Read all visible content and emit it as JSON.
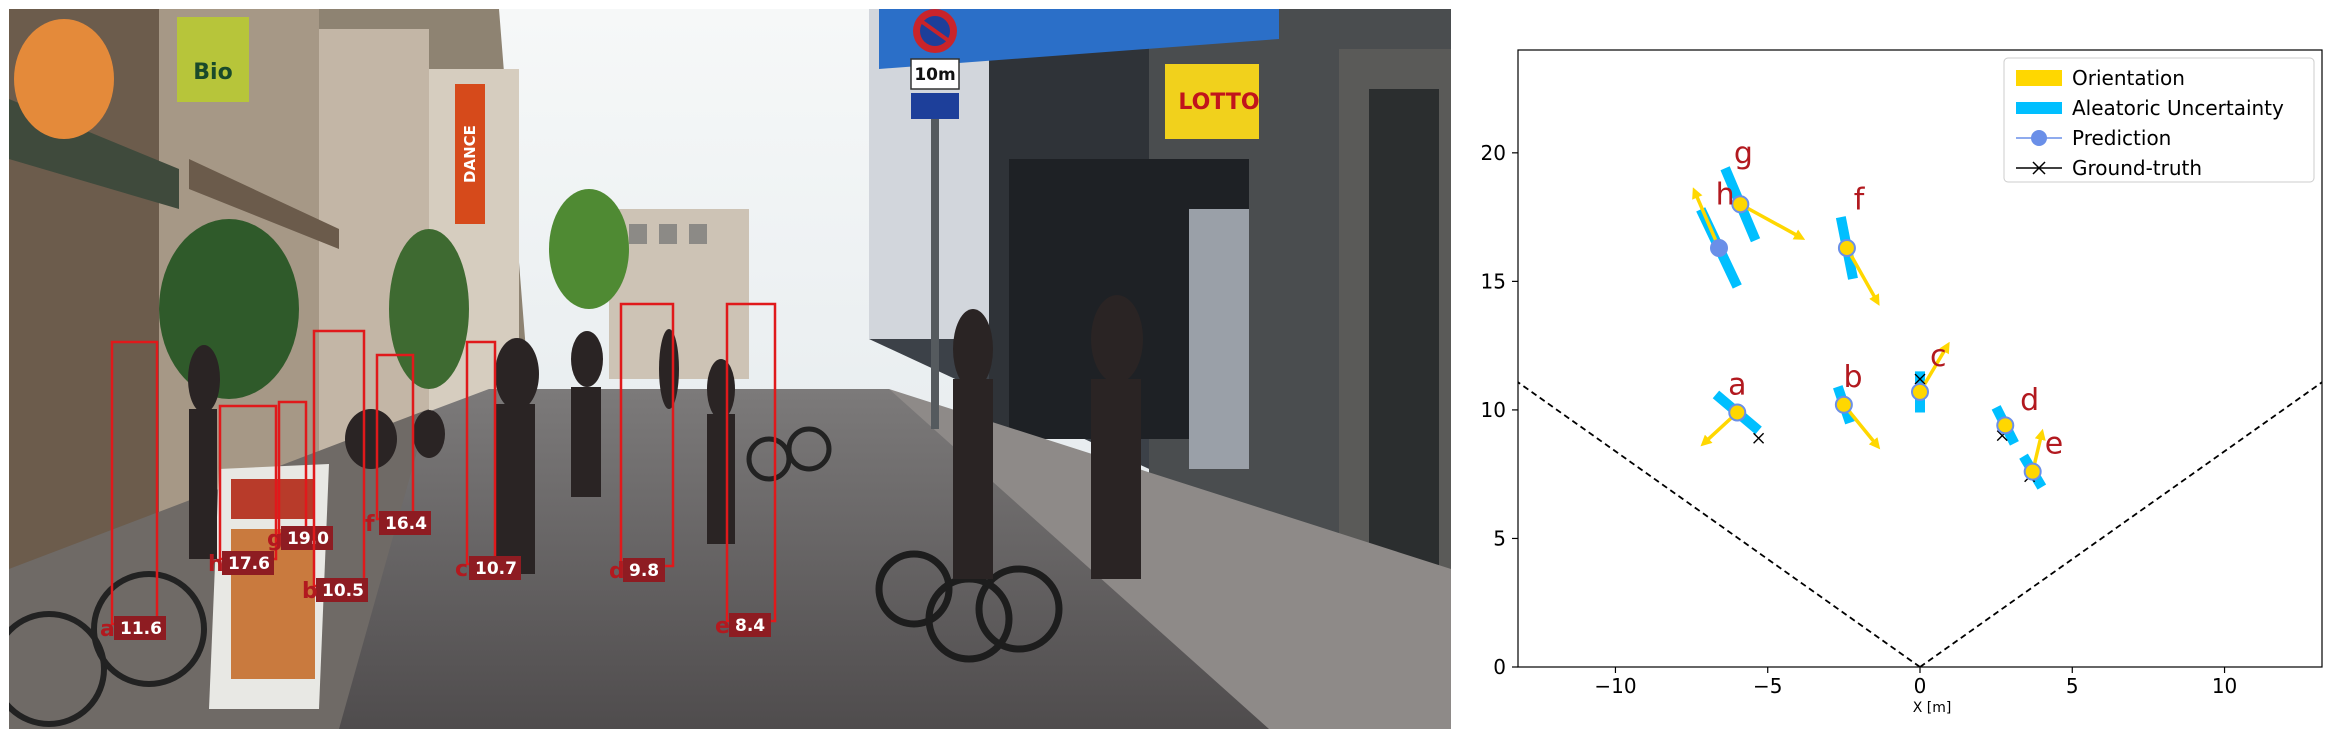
{
  "photo": {
    "shop_signs": {
      "bio_sign": "Bio",
      "dance_sign": "DANCE",
      "lotto_sign": "LOTTO",
      "speed_sign": "10m"
    },
    "detections": [
      {
        "letter": "a",
        "distance": "11.6"
      },
      {
        "letter": "h",
        "distance": "17.6"
      },
      {
        "letter": "g",
        "distance": "19.0"
      },
      {
        "letter": "b",
        "distance": "10.5"
      },
      {
        "letter": "f",
        "distance": "16.4"
      },
      {
        "letter": "c",
        "distance": "10.7"
      },
      {
        "letter": "d",
        "distance": "9.8"
      },
      {
        "letter": "e",
        "distance": "8.4"
      }
    ]
  },
  "colors": {
    "box": "#e0191b",
    "label_bg": "#8e1c22",
    "orientation": "#ffd700",
    "uncertainty": "#00bfff",
    "prediction": "#6a8fe8",
    "ground_truth": "#000000",
    "letter": "#b2191f"
  },
  "chart_data": {
    "type": "scatter",
    "xlabel": "X [m]",
    "ylabel": "",
    "xlim": [
      -13.2,
      13.2
    ],
    "ylim": [
      0,
      24
    ],
    "xticks": [
      -10,
      -5,
      0,
      5,
      10
    ],
    "yticks": [
      0,
      5,
      10,
      15,
      20
    ],
    "xtick_labels": [
      "−10",
      "−5",
      "0",
      "5",
      "10"
    ],
    "ytick_labels": [
      "0",
      "5",
      "10",
      "15",
      "20"
    ],
    "legend_position": "top-right",
    "legend": [
      {
        "label": "Orientation",
        "kind": "orientation"
      },
      {
        "label": "Aleatoric Uncertainty",
        "kind": "uncertainty"
      },
      {
        "label": "Prediction",
        "kind": "prediction"
      },
      {
        "label": "Ground-truth",
        "kind": "ground_truth"
      }
    ],
    "field_of_view": {
      "half_angle_deg": 50
    },
    "points": [
      {
        "name": "a",
        "pred": [
          -6.0,
          9.9
        ],
        "gt": [
          -5.3,
          8.9
        ],
        "unc_dx": 0.7,
        "unc_dy": 0.7,
        "arrow": [
          -1.1,
          -1.2
        ],
        "label_pos": [
          -6.0,
          10.6
        ]
      },
      {
        "name": "b",
        "pred": [
          -2.5,
          10.2
        ],
        "gt": [
          -2.5,
          10.2
        ],
        "unc_dx": 0.2,
        "unc_dy": 0.7,
        "arrow": [
          1.1,
          -1.6
        ],
        "label_pos": [
          -2.2,
          10.9
        ]
      },
      {
        "name": "c",
        "pred": [
          0.0,
          10.7
        ],
        "gt": [
          0.0,
          11.2
        ],
        "unc_dx": 0.0,
        "unc_dy": 0.8,
        "arrow": [
          0.9,
          1.8
        ],
        "label_pos": [
          0.6,
          11.7
        ]
      },
      {
        "name": "d",
        "pred": [
          2.8,
          9.4
        ],
        "gt": [
          2.7,
          9.0
        ],
        "unc_dx": 0.3,
        "unc_dy": 0.7,
        "arrow": [
          0.0,
          0.0
        ],
        "label_pos": [
          3.6,
          10.0
        ]
      },
      {
        "name": "e",
        "pred": [
          3.7,
          7.6
        ],
        "gt": [
          3.6,
          7.4
        ],
        "unc_dx": 0.3,
        "unc_dy": 0.6,
        "arrow": [
          0.3,
          1.5
        ],
        "label_pos": [
          4.4,
          8.3
        ]
      },
      {
        "name": "f",
        "pred": [
          -2.4,
          16.3
        ],
        "gt": [
          -2.4,
          16.3
        ],
        "unc_dx": 0.2,
        "unc_dy": 1.2,
        "arrow": [
          1.0,
          -2.1
        ],
        "label_pos": [
          -2.0,
          17.8
        ]
      },
      {
        "name": "g",
        "pred": [
          -5.9,
          18.0
        ],
        "gt": [
          -5.9,
          18.0
        ],
        "unc_dx": 0.5,
        "unc_dy": 1.4,
        "arrow": [
          2.0,
          -1.3
        ],
        "label_pos": [
          -5.8,
          19.6
        ]
      },
      {
        "name": "h",
        "pred": [
          -6.6,
          16.3
        ],
        "gt": [
          -6.6,
          16.3
        ],
        "unc_dx": 0.6,
        "unc_dy": 1.5,
        "arrow": [
          -0.8,
          2.2
        ],
        "label_pos": [
          -6.4,
          18.0
        ]
      }
    ]
  }
}
